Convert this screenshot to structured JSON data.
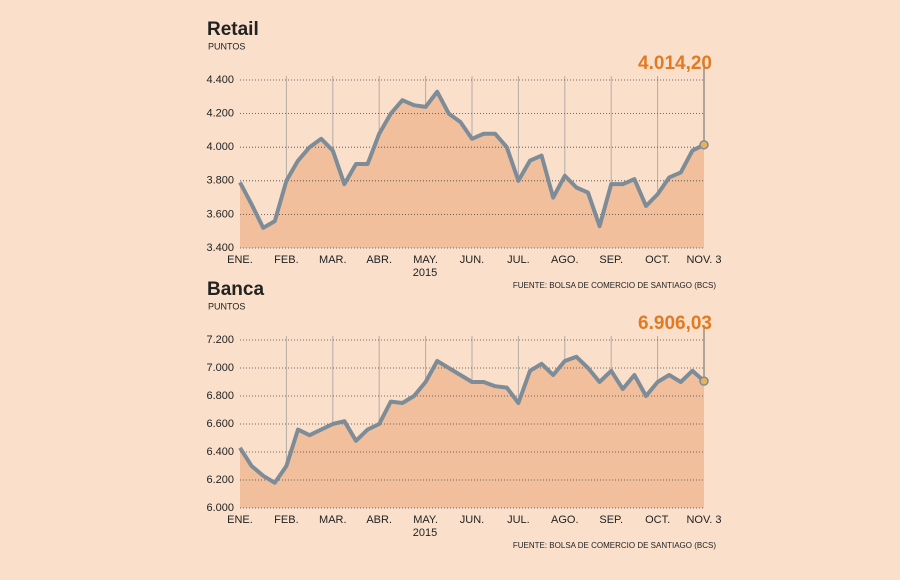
{
  "chart_data": [
    {
      "type": "line",
      "title": "Retail",
      "subtitle": "PUNTOS",
      "x_label": "2015",
      "source": "FUENTE: BOLSA DE COMERCIO DE SANTIAGO (BCS)",
      "categories": [
        "ENE.",
        null,
        null,
        null,
        "FEB.",
        null,
        null,
        null,
        "MAR.",
        null,
        null,
        null,
        "ABR.",
        null,
        null,
        null,
        "MAY.",
        null,
        null,
        null,
        "JUN.",
        null,
        null,
        null,
        "JUL.",
        null,
        null,
        null,
        "AGO.",
        null,
        null,
        null,
        "SEP.",
        null,
        null,
        null,
        "OCT.",
        null,
        null,
        null,
        "NOV. 3"
      ],
      "series": [
        {
          "color": "#7e8c98",
          "values": [
            3790,
            3660,
            3520,
            3560,
            3800,
            3920,
            4000,
            4050,
            3980,
            3780,
            3900,
            3900,
            4080,
            4200,
            4280,
            4250,
            4240,
            4330,
            4200,
            4150,
            4050,
            4080,
            4080,
            4000,
            3800,
            3920,
            3950,
            3700,
            3830,
            3760,
            3730,
            3530,
            3780,
            3780,
            3810,
            3650,
            3720,
            3820,
            3850,
            3980,
            4014.2
          ],
          "value_labels": [
            null,
            null,
            null,
            null,
            null,
            null,
            null,
            null,
            null,
            null,
            null,
            null,
            null,
            null,
            null,
            null,
            null,
            null,
            null,
            null,
            null,
            null,
            null,
            null,
            null,
            null,
            null,
            null,
            null,
            null,
            null,
            null,
            null,
            null,
            null,
            null,
            null,
            null,
            null,
            null,
            "4.014,20"
          ]
        }
      ],
      "ylim": [
        3400,
        4400
      ],
      "yticks": [
        {
          "value": 3400,
          "label": "3.400"
        },
        {
          "value": 3600,
          "label": "3.600"
        },
        {
          "value": 3800,
          "label": "3.800"
        },
        {
          "value": 4000,
          "label": "4.000"
        },
        {
          "value": 4200,
          "label": "4.200"
        },
        {
          "value": 4400,
          "label": "4.400"
        }
      ],
      "grid": true
    },
    {
      "type": "line",
      "title": "Banca",
      "subtitle": "PUNTOS",
      "x_label": "2015",
      "source": "FUENTE: BOLSA DE COMERCIO DE SANTIAGO (BCS)",
      "categories": [
        "ENE.",
        null,
        null,
        null,
        "FEB.",
        null,
        null,
        null,
        "MAR.",
        null,
        null,
        null,
        "ABR.",
        null,
        null,
        null,
        "MAY.",
        null,
        null,
        null,
        "JUN.",
        null,
        null,
        null,
        "JUL.",
        null,
        null,
        null,
        "AGO.",
        null,
        null,
        null,
        "SEP.",
        null,
        null,
        null,
        "OCT.",
        null,
        null,
        null,
        "NOV. 3"
      ],
      "series": [
        {
          "color": "#7e8c98",
          "values": [
            6430,
            6300,
            6230,
            6180,
            6300,
            6560,
            6520,
            6560,
            6600,
            6620,
            6480,
            6560,
            6600,
            6760,
            6750,
            6800,
            6900,
            7050,
            7000,
            6950,
            6900,
            6900,
            6870,
            6860,
            6750,
            6980,
            7030,
            6950,
            7050,
            7080,
            7000,
            6900,
            6980,
            6850,
            6950,
            6800,
            6900,
            6950,
            6900,
            6980,
            6906.03
          ],
          "value_labels": [
            null,
            null,
            null,
            null,
            null,
            null,
            null,
            null,
            null,
            null,
            null,
            null,
            null,
            null,
            null,
            null,
            null,
            null,
            null,
            null,
            null,
            null,
            null,
            null,
            null,
            null,
            null,
            null,
            null,
            null,
            null,
            null,
            null,
            null,
            null,
            null,
            null,
            null,
            null,
            null,
            "6.906,03"
          ]
        }
      ],
      "ylim": [
        6000,
        7200
      ],
      "yticks": [
        {
          "value": 6000,
          "label": "6.000"
        },
        {
          "value": 6200,
          "label": "6.200"
        },
        {
          "value": 6400,
          "label": "6.400"
        },
        {
          "value": 6600,
          "label": "6.600"
        },
        {
          "value": 6800,
          "label": "6.800"
        },
        {
          "value": 7000,
          "label": "7.000"
        },
        {
          "value": 7200,
          "label": "7.200"
        }
      ],
      "grid": true
    }
  ]
}
